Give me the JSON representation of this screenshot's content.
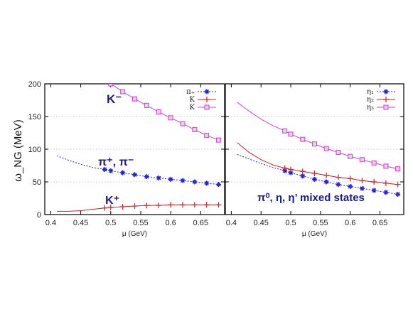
{
  "ylabel": "ω_NG (MeV)",
  "chart_data": [
    {
      "type": "line",
      "xlabel": "μ (GeV)",
      "ylabel": "ω_NG (MeV)",
      "xlim": [
        0.39,
        0.69
      ],
      "ylim": [
        0,
        200
      ],
      "xticks": [
        "0.4",
        "0.45",
        "0.5",
        "0.55",
        "0.6",
        "0.65"
      ],
      "yticks": [
        "0",
        "50",
        "100",
        "150",
        "200"
      ],
      "grid": true,
      "legend": "top-right",
      "annotations": [
        "K⁻",
        "π⁺, π⁻",
        "K⁺"
      ],
      "series": [
        {
          "name": "π₊",
          "color": "#2222dd",
          "marker": "asterisk",
          "x": [
            0.41,
            0.43,
            0.45,
            0.47,
            0.49,
            0.5,
            0.52,
            0.54,
            0.56,
            0.58,
            0.6,
            0.62,
            0.64,
            0.66,
            0.68
          ],
          "y": [
            90,
            83,
            77,
            72,
            69,
            67,
            64,
            61,
            58,
            56,
            54,
            52,
            50,
            48,
            46
          ]
        },
        {
          "name": "K",
          "color": "#cc2222",
          "marker": "plus",
          "x": [
            0.41,
            0.43,
            0.45,
            0.47,
            0.49,
            0.5,
            0.52,
            0.54,
            0.56,
            0.58,
            0.6,
            0.62,
            0.64,
            0.66,
            0.68
          ],
          "y": [
            5,
            5,
            6,
            8,
            10,
            11,
            12,
            13,
            14,
            14,
            15,
            15,
            15,
            15,
            15
          ]
        },
        {
          "name": "K",
          "color": "#cc44cc",
          "marker": "square",
          "x": [
            0.5,
            0.52,
            0.54,
            0.56,
            0.58,
            0.6,
            0.62,
            0.64,
            0.66,
            0.68
          ],
          "y": [
            200,
            188,
            177,
            167,
            157,
            148,
            139,
            130,
            121,
            114
          ]
        }
      ]
    },
    {
      "type": "line",
      "xlabel": "μ (GeV)",
      "xlim": [
        0.39,
        0.69
      ],
      "ylim": [
        0,
        200
      ],
      "xticks": [
        "0.4",
        "0.45",
        "0.5",
        "0.55",
        "0.6",
        "0.65"
      ],
      "grid": true,
      "legend": "top-right",
      "annotations": [
        "π⁰, η,  η’ mixed states"
      ],
      "series": [
        {
          "name": "η₁",
          "color": "#2222dd",
          "marker": "asterisk",
          "x": [
            0.41,
            0.43,
            0.45,
            0.47,
            0.49,
            0.5,
            0.52,
            0.54,
            0.56,
            0.58,
            0.6,
            0.62,
            0.64,
            0.66,
            0.68
          ],
          "y": [
            92,
            85,
            78,
            72,
            67,
            64,
            59,
            54,
            50,
            46,
            43,
            40,
            37,
            34,
            31
          ]
        },
        {
          "name": "η₂",
          "color": "#cc2222",
          "marker": "plus",
          "x": [
            0.41,
            0.43,
            0.45,
            0.47,
            0.49,
            0.5,
            0.52,
            0.54,
            0.56,
            0.58,
            0.6,
            0.62,
            0.64,
            0.66,
            0.68
          ],
          "y": [
            110,
            95,
            84,
            76,
            71,
            69,
            66,
            63,
            60,
            57,
            55,
            52,
            50,
            48,
            46
          ]
        },
        {
          "name": "η₃",
          "color": "#cc44cc",
          "marker": "square",
          "x": [
            0.41,
            0.43,
            0.45,
            0.47,
            0.49,
            0.5,
            0.52,
            0.54,
            0.56,
            0.58,
            0.6,
            0.62,
            0.64,
            0.66,
            0.68
          ],
          "y": [
            172,
            158,
            146,
            136,
            128,
            123,
            115,
            108,
            101,
            95,
            89,
            84,
            79,
            74,
            70
          ]
        }
      ]
    }
  ]
}
